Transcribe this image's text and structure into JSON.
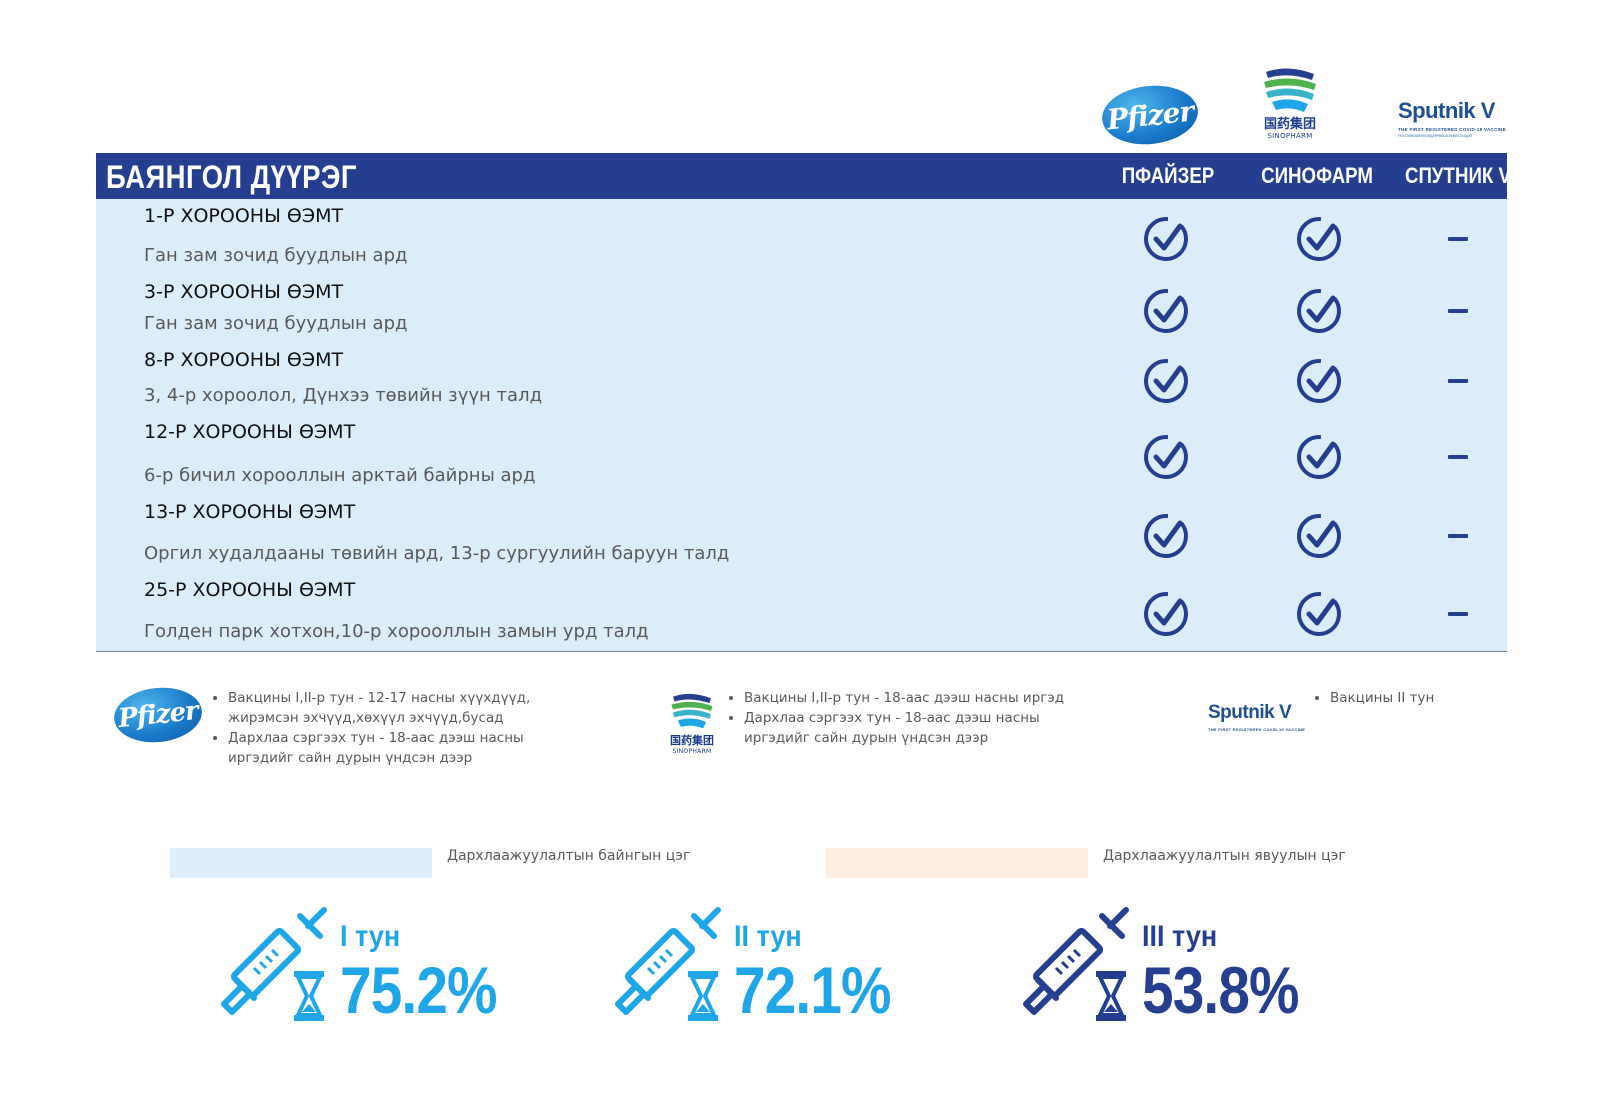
{
  "header": {
    "title": "БАЯНГОЛ ДҮҮРЭГ",
    "col_pfizer": "ПФАЙЗЕР",
    "col_sinopharm": "СИНОФАРМ",
    "col_sputnik": "СПУТНИК V"
  },
  "logos": {
    "pfizer": "Pfizer",
    "sinopharm_cn": "国药集团",
    "sinopharm_en": "SINOPHARM",
    "sputnik": "Sputnik V",
    "sputnik_tagline": "THE FIRST REGISTERED COVID-19 VACCINE",
    "sputnik_tagline2": "РОССИЙСКИЙ ФОНД ПРЯМЫХ ИНВЕСТИЦИЙ"
  },
  "rows": [
    {
      "title": "1-Р ХОРООНЫ ӨЭМТ",
      "subtitle": "Ган зам зочид буудлын ард",
      "pfizer": true,
      "sinopharm": true,
      "sputnik": "–"
    },
    {
      "title": "3-Р ХОРООНЫ ӨЭМТ",
      "subtitle": "Ган зам зочид буудлын ард",
      "pfizer": true,
      "sinopharm": true,
      "sputnik": "–"
    },
    {
      "title": "8-Р ХОРООНЫ ӨЭМТ",
      "subtitle": "3, 4-р хороолол, Дүнхээ төвийн зүүн талд",
      "pfizer": true,
      "sinopharm": true,
      "sputnik": "–"
    },
    {
      "title": "12-Р ХОРООНЫ ӨЭМТ",
      "subtitle": "6-р бичил хорооллын арктай байрны ард",
      "pfizer": true,
      "sinopharm": true,
      "sputnik": "–"
    },
    {
      "title": "13-Р ХОРООНЫ ӨЭМТ",
      "subtitle": "Оргил худалдааны төвийн ард, 13-р сургуулийн баруун талд",
      "pfizer": true,
      "sinopharm": true,
      "sputnik": "–"
    },
    {
      "title": "25-Р ХОРООНЫ ӨЭМТ",
      "subtitle": "Голден парк хотхон,10-р хорооллын замын урд талд",
      "pfizer": true,
      "sinopharm": true,
      "sputnik": "–"
    }
  ],
  "notes": {
    "pfizer": [
      "Вакцины I,II-р тун - 12-17 насны хүүхдүүд, жирэмсэн эхчүүд,хөхүүл эхчүүд,бусад",
      "Дархлаа сэргээх тун - 18-аас дээш насны иргэдийг сайн дурын үндсэн дээр"
    ],
    "sinopharm": [
      "Вакцины I,II-р тун - 18-аас дээш насны иргэд",
      "Дархлаа сэргээх тун - 18-аас дээш насны иргэдийг сайн дурын үндсэн дээр"
    ],
    "sputnik": [
      "Вакцины II тун"
    ]
  },
  "legend": {
    "fixed": {
      "label": "Дархлаажуулалтын байнгын цэг",
      "color": "#ddeefb"
    },
    "mobile": {
      "label": "Дархлаажуулалтын явуулын цэг",
      "color": "#fdeee0"
    }
  },
  "doses": [
    {
      "label": "I тун",
      "percent": "75.2%",
      "color": "#1fa6e8"
    },
    {
      "label": "II тун",
      "percent": "72.1%",
      "color": "#1fa6e8"
    },
    {
      "label": "III тун",
      "percent": "53.8%",
      "color": "#243f8f"
    }
  ],
  "colors": {
    "brand_navy": "#243f8f",
    "row_bg": "#dcedfa",
    "accent_blue": "#1fa6e8"
  }
}
